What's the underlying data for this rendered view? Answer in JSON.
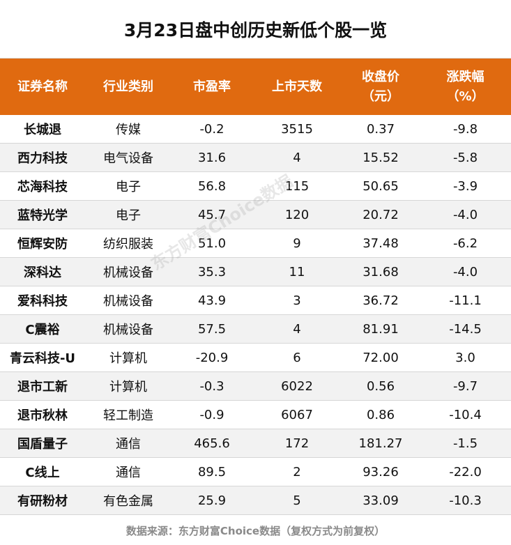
{
  "title": "3月23日盘中创历史新低个股一览",
  "headers": [
    {
      "line1": "证券名称",
      "line2": ""
    },
    {
      "line1": "行业类别",
      "line2": ""
    },
    {
      "line1": "市盈率",
      "line2": ""
    },
    {
      "line1": "上市天数",
      "line2": ""
    },
    {
      "line1": "收盘价",
      "line2": "（元）"
    },
    {
      "line1": "涨跌幅",
      "line2": "（%）"
    }
  ],
  "rows": [
    [
      "长城退",
      "传媒",
      "-0.2",
      "3515",
      "0.37",
      "-9.8"
    ],
    [
      "西力科技",
      "电气设备",
      "31.6",
      "4",
      "15.52",
      "-5.8"
    ],
    [
      "芯海科技",
      "电子",
      "56.8",
      "115",
      "50.65",
      "-3.9"
    ],
    [
      "蓝特光学",
      "电子",
      "45.7",
      "120",
      "20.72",
      "-4.0"
    ],
    [
      "恒辉安防",
      "纺织服装",
      "51.0",
      "9",
      "37.48",
      "-6.2"
    ],
    [
      "深科达",
      "机械设备",
      "35.3",
      "11",
      "31.68",
      "-4.0"
    ],
    [
      "爱科科技",
      "机械设备",
      "43.9",
      "3",
      "36.72",
      "-11.1"
    ],
    [
      "C震裕",
      "机械设备",
      "57.5",
      "4",
      "81.91",
      "-14.5"
    ],
    [
      "青云科技-U",
      "计算机",
      "-20.9",
      "6",
      "72.00",
      "3.0"
    ],
    [
      "退市工新",
      "计算机",
      "-0.3",
      "6022",
      "0.56",
      "-9.7"
    ],
    [
      "退市秋林",
      "轻工制造",
      "-0.9",
      "6067",
      "0.86",
      "-10.4"
    ],
    [
      "国盾量子",
      "通信",
      "465.6",
      "172",
      "181.27",
      "-1.5"
    ],
    [
      "C线上",
      "通信",
      "89.5",
      "2",
      "93.26",
      "-22.0"
    ],
    [
      "有研粉材",
      "有色金属",
      "25.9",
      "5",
      "33.09",
      "-10.3"
    ]
  ],
  "source": "数据来源：东方财富Choice数据（复权方式为前复权）",
  "watermark": "东方财富Choice数据",
  "colors": {
    "header_bg": "#e06a10",
    "header_text": "#ffffff",
    "stripe": "#f2f2f2"
  }
}
